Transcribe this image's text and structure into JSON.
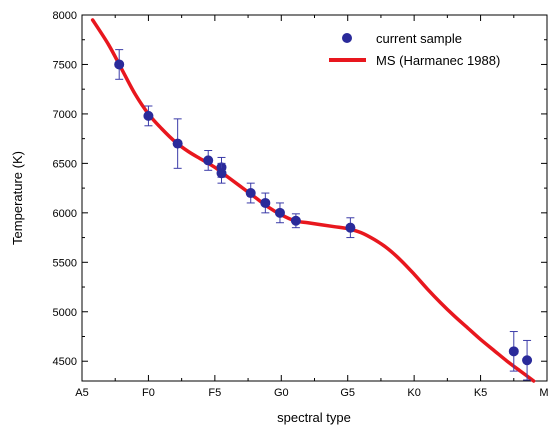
{
  "chart_data": {
    "type": "scatter",
    "xlabel": "spectral type",
    "ylabel": "Temperature (K)",
    "x_ticks": [
      "A5",
      "F0",
      "F5",
      "G0",
      "G5",
      "K0",
      "K5",
      "M0"
    ],
    "x_tick_index": [
      0,
      5,
      10,
      15,
      20,
      25,
      30,
      35
    ],
    "xlim": [
      0,
      35
    ],
    "ylim": [
      4300,
      8000
    ],
    "y_ticks": [
      4500,
      5000,
      5500,
      6000,
      6500,
      7000,
      7500,
      8000
    ],
    "grid": false,
    "legend_position": "top-right",
    "series": [
      {
        "name": "current sample",
        "kind": "points",
        "color": "#2a2a9a",
        "errorbar_color": "#3b3ba8",
        "points": [
          {
            "x": 2.8,
            "y": 7500,
            "err": 150
          },
          {
            "x": 5.0,
            "y": 6980,
            "err": 100
          },
          {
            "x": 7.2,
            "y": 6700,
            "err": 250
          },
          {
            "x": 9.5,
            "y": 6530,
            "err": 100
          },
          {
            "x": 10.5,
            "y": 6460,
            "err": 100
          },
          {
            "x": 10.5,
            "y": 6400,
            "err": 100
          },
          {
            "x": 12.7,
            "y": 6200,
            "err": 100
          },
          {
            "x": 13.8,
            "y": 6100,
            "err": 100
          },
          {
            "x": 14.9,
            "y": 6000,
            "err": 100
          },
          {
            "x": 16.1,
            "y": 5920,
            "err": 70
          },
          {
            "x": 20.2,
            "y": 5850,
            "err": 100
          },
          {
            "x": 32.5,
            "y": 4600,
            "err": 200
          },
          {
            "x": 33.5,
            "y": 4510,
            "err": 200
          }
        ]
      },
      {
        "name": "MS (Harmanec 1988)",
        "kind": "line",
        "color": "#e8171e",
        "points": [
          {
            "x": 0.8,
            "y": 7950
          },
          {
            "x": 2.0,
            "y": 7700
          },
          {
            "x": 3.0,
            "y": 7450
          },
          {
            "x": 4.0,
            "y": 7200
          },
          {
            "x": 5.0,
            "y": 7000
          },
          {
            "x": 6.0,
            "y": 6850
          },
          {
            "x": 7.0,
            "y": 6720
          },
          {
            "x": 8.0,
            "y": 6620
          },
          {
            "x": 9.0,
            "y": 6540
          },
          {
            "x": 10.0,
            "y": 6460
          },
          {
            "x": 11.0,
            "y": 6360
          },
          {
            "x": 12.0,
            "y": 6260
          },
          {
            "x": 13.0,
            "y": 6160
          },
          {
            "x": 14.0,
            "y": 6060
          },
          {
            "x": 15.0,
            "y": 5980
          },
          {
            "x": 16.0,
            "y": 5920
          },
          {
            "x": 17.0,
            "y": 5900
          },
          {
            "x": 18.0,
            "y": 5880
          },
          {
            "x": 19.0,
            "y": 5860
          },
          {
            "x": 20.0,
            "y": 5840
          },
          {
            "x": 21.0,
            "y": 5800
          },
          {
            "x": 22.0,
            "y": 5730
          },
          {
            "x": 23.0,
            "y": 5640
          },
          {
            "x": 24.0,
            "y": 5520
          },
          {
            "x": 25.0,
            "y": 5380
          },
          {
            "x": 26.0,
            "y": 5230
          },
          {
            "x": 27.0,
            "y": 5090
          },
          {
            "x": 28.0,
            "y": 4960
          },
          {
            "x": 29.0,
            "y": 4840
          },
          {
            "x": 30.0,
            "y": 4720
          },
          {
            "x": 31.0,
            "y": 4610
          },
          {
            "x": 32.0,
            "y": 4500
          },
          {
            "x": 33.0,
            "y": 4400
          },
          {
            "x": 34.0,
            "y": 4300
          }
        ]
      }
    ]
  }
}
